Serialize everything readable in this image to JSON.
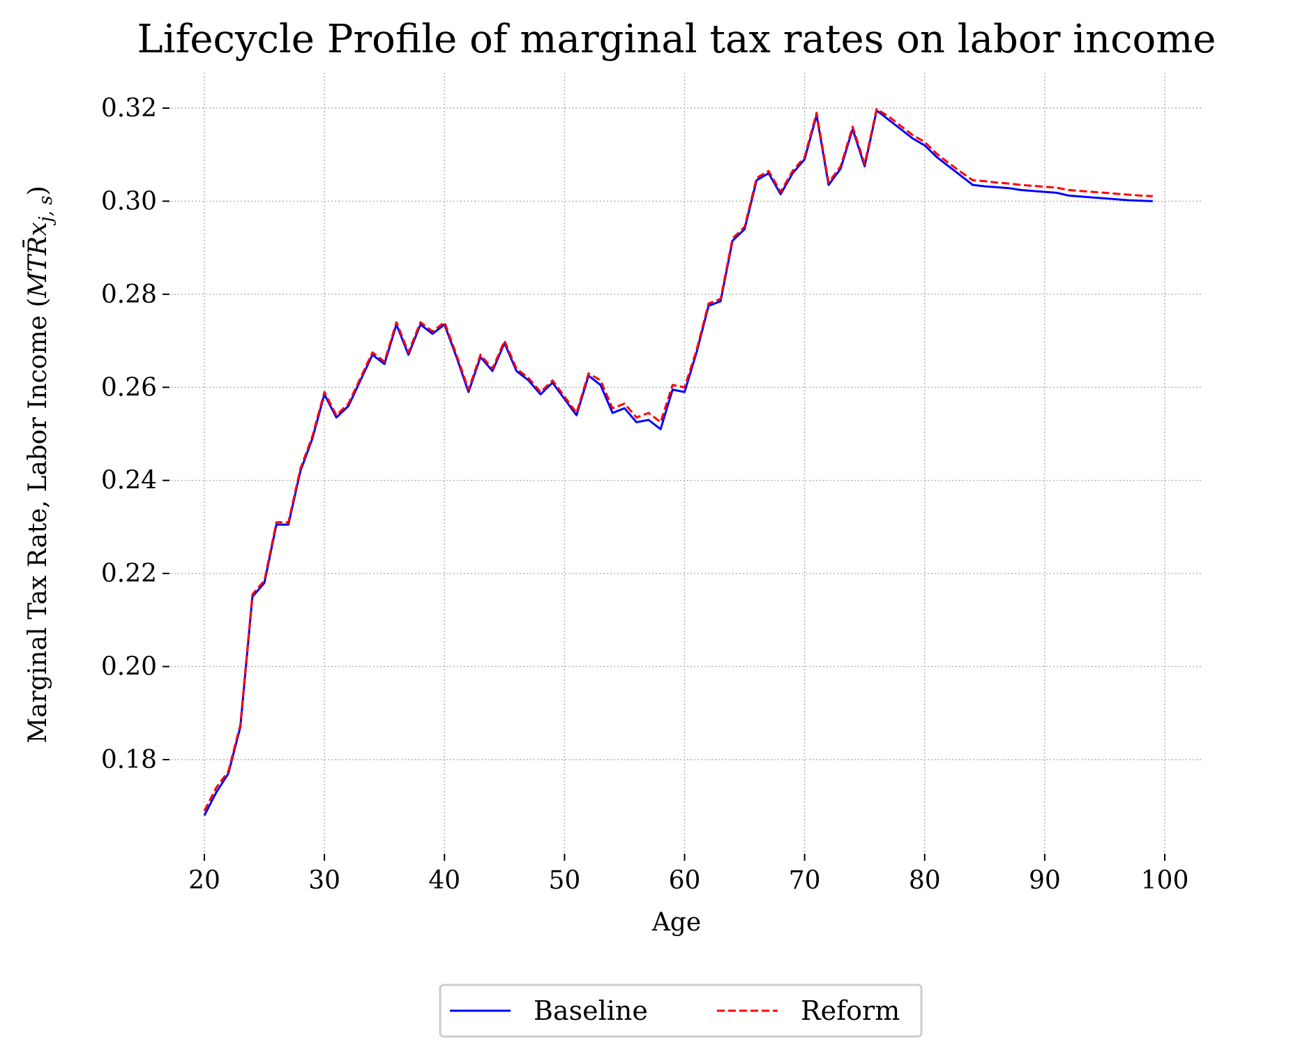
{
  "chart_data": {
    "type": "line",
    "title": "Lifecycle Profile of marginal tax rates on labor income",
    "xlabel": "Age",
    "ylabel_main": "Marginal Tax Rate, Labor Income (",
    "ylabel_math": "MTR̄x",
    "ylabel_sub": "j, s",
    "ylabel_close": ")",
    "xlim": [
      16,
      103
    ],
    "ylim": [
      0.16,
      0.327
    ],
    "x_ticks": [
      20,
      30,
      40,
      50,
      60,
      70,
      80,
      90,
      100
    ],
    "x_tick_labels": [
      "20",
      "30",
      "40",
      "50",
      "60",
      "70",
      "80",
      "90",
      "100"
    ],
    "y_ticks": [
      0.18,
      0.2,
      0.22,
      0.24,
      0.26,
      0.28,
      0.3,
      0.32
    ],
    "y_tick_labels": [
      "0.18",
      "0.20",
      "0.22",
      "0.24",
      "0.26",
      "0.28",
      "0.30",
      "0.32"
    ],
    "grid": true,
    "legend_placement": "bottom-center, below axes",
    "x": [
      20,
      21,
      22,
      23,
      24,
      25,
      26,
      27,
      28,
      29,
      30,
      31,
      32,
      33,
      34,
      35,
      36,
      37,
      38,
      39,
      40,
      41,
      42,
      43,
      44,
      45,
      46,
      47,
      48,
      49,
      50,
      51,
      52,
      53,
      54,
      55,
      56,
      57,
      58,
      59,
      60,
      61,
      62,
      63,
      64,
      65,
      66,
      67,
      68,
      69,
      70,
      71,
      72,
      73,
      74,
      75,
      76,
      77,
      78,
      79,
      80,
      81,
      82,
      83,
      84,
      85,
      86,
      87,
      88,
      89,
      90,
      91,
      92,
      93,
      94,
      95,
      96,
      97,
      98,
      99
    ],
    "series": [
      {
        "name": "Baseline",
        "color": "#0000ff",
        "style": "solid",
        "values": [
          0.168,
          0.173,
          0.177,
          0.187,
          0.215,
          0.218,
          0.2305,
          0.2305,
          0.242,
          0.249,
          0.2585,
          0.2535,
          0.256,
          0.2615,
          0.267,
          0.265,
          0.2735,
          0.267,
          0.2735,
          0.2715,
          0.2735,
          0.2665,
          0.259,
          0.2665,
          0.2635,
          0.2695,
          0.2635,
          0.2615,
          0.2585,
          0.261,
          0.2575,
          0.254,
          0.2625,
          0.2605,
          0.2545,
          0.2555,
          0.2525,
          0.253,
          0.251,
          0.2595,
          0.259,
          0.2675,
          0.2775,
          0.2785,
          0.2915,
          0.294,
          0.3045,
          0.306,
          0.3015,
          0.306,
          0.309,
          0.3185,
          0.3035,
          0.307,
          0.3155,
          0.3075,
          0.3195,
          0.3175,
          0.3155,
          0.3135,
          0.312,
          0.3095,
          0.3075,
          0.3055,
          0.3035,
          0.3032,
          0.303,
          0.3028,
          0.3024,
          0.3022,
          0.302,
          0.3018,
          0.3012,
          0.301,
          0.3008,
          0.3006,
          0.3004,
          0.3002,
          0.3001,
          0.3
        ]
      },
      {
        "name": "Reform",
        "color": "#ff0000",
        "style": "dashed",
        "values": [
          0.169,
          0.174,
          0.1775,
          0.1875,
          0.2155,
          0.2185,
          0.231,
          0.231,
          0.2425,
          0.2495,
          0.259,
          0.254,
          0.2565,
          0.262,
          0.2675,
          0.2655,
          0.274,
          0.2675,
          0.274,
          0.272,
          0.274,
          0.267,
          0.2595,
          0.267,
          0.264,
          0.27,
          0.264,
          0.262,
          0.259,
          0.2615,
          0.258,
          0.2545,
          0.263,
          0.2615,
          0.2555,
          0.2565,
          0.2535,
          0.2545,
          0.2525,
          0.2605,
          0.26,
          0.268,
          0.278,
          0.279,
          0.292,
          0.2945,
          0.305,
          0.3065,
          0.302,
          0.3065,
          0.3095,
          0.319,
          0.304,
          0.3075,
          0.316,
          0.308,
          0.3198,
          0.3182,
          0.3162,
          0.3142,
          0.3127,
          0.3102,
          0.3082,
          0.3063,
          0.3045,
          0.3043,
          0.304,
          0.3038,
          0.3035,
          0.3033,
          0.3031,
          0.3029,
          0.3024,
          0.3022,
          0.302,
          0.3018,
          0.3016,
          0.3014,
          0.3012,
          0.3011
        ]
      }
    ]
  }
}
